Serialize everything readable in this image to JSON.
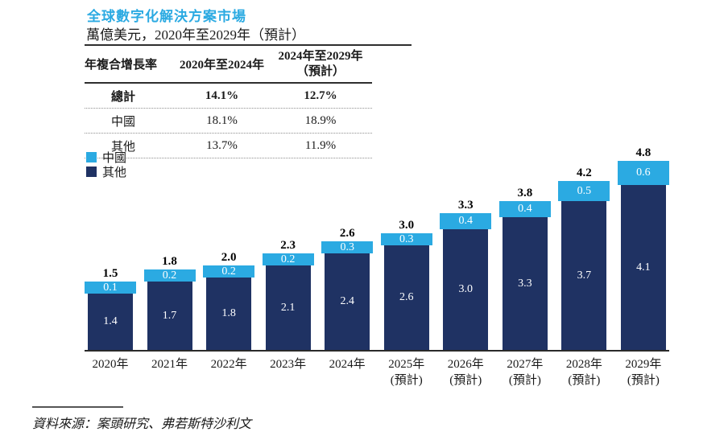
{
  "header": {
    "title": "全球數字化解決方案市場",
    "subtitle": "萬億美元，2020年至2029年（預計）"
  },
  "cagr_table": {
    "col1_header": "年複合增長率",
    "col2_header": "2020年至2024年",
    "col3_header_line1": "2024年至2029年",
    "col3_header_line2": "（預計）",
    "rows": [
      {
        "label": "總計",
        "cagr_2020_2024": "14.1%",
        "cagr_2024_2029": "12.7%"
      },
      {
        "label": "中國",
        "cagr_2020_2024": "18.1%",
        "cagr_2024_2029": "18.9%"
      },
      {
        "label": "其他",
        "cagr_2020_2024": "13.7%",
        "cagr_2024_2029": "11.9%"
      }
    ]
  },
  "legend": [
    {
      "label": "中國",
      "color": "#2baae2"
    },
    {
      "label": "其他",
      "color": "#1f3263"
    }
  ],
  "chart_data": {
    "type": "bar",
    "stacked": true,
    "title": "全球數字化解決方案市場",
    "unit": "萬億美元",
    "ylim": [
      0,
      4.8
    ],
    "grid": false,
    "legend_position": "top-left",
    "categories": [
      {
        "label": "2020年",
        "note": ""
      },
      {
        "label": "2021年",
        "note": ""
      },
      {
        "label": "2022年",
        "note": ""
      },
      {
        "label": "2023年",
        "note": ""
      },
      {
        "label": "2024年",
        "note": ""
      },
      {
        "label": "2025年",
        "note": "(預計)"
      },
      {
        "label": "2026年",
        "note": "(預計)"
      },
      {
        "label": "2027年",
        "note": "(預計)"
      },
      {
        "label": "2028年",
        "note": "(預計)"
      },
      {
        "label": "2029年",
        "note": "(預計)"
      }
    ],
    "series": [
      {
        "name": "其他",
        "color": "#1f3263",
        "values": [
          1.4,
          1.7,
          1.8,
          2.1,
          2.4,
          2.6,
          3.0,
          3.3,
          3.7,
          4.1
        ]
      },
      {
        "name": "中國",
        "color": "#2baae2",
        "values": [
          0.1,
          0.2,
          0.2,
          0.2,
          0.3,
          0.3,
          0.4,
          0.4,
          0.5,
          0.6
        ]
      }
    ],
    "totals": [
      1.5,
      1.8,
      2.0,
      2.3,
      2.6,
      3.0,
      3.3,
      3.8,
      4.2,
      4.8
    ]
  },
  "footer": {
    "source": "資料來源：案頭研究、弗若斯特沙利文"
  }
}
